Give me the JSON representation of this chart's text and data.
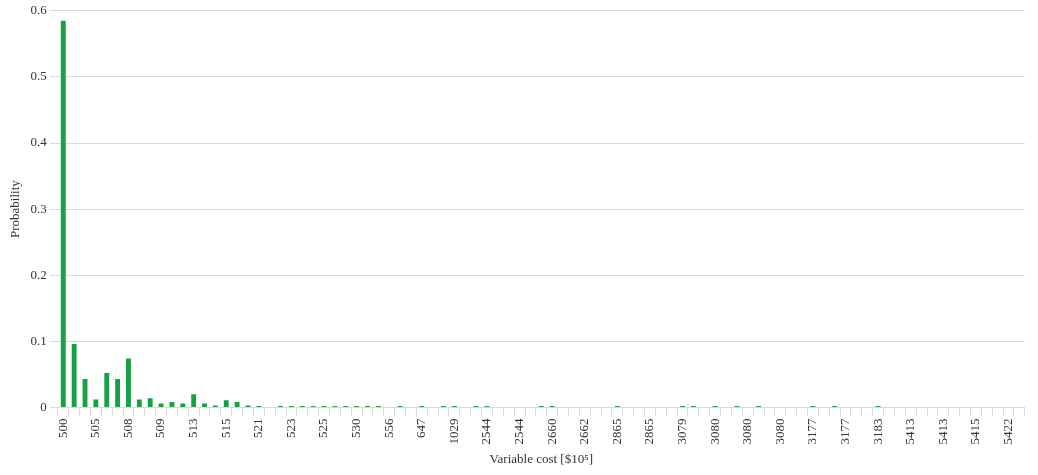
{
  "chart_data": {
    "type": "bar",
    "xlabel": "Variable cost [$10⁵]",
    "ylabel": "Probability",
    "categories": [
      "500",
      null,
      null,
      "505",
      null,
      null,
      "508",
      null,
      null,
      "509",
      null,
      null,
      "513",
      null,
      null,
      "515",
      null,
      null,
      "521",
      null,
      null,
      "523",
      null,
      null,
      "525",
      null,
      null,
      "530",
      null,
      null,
      "556",
      null,
      null,
      "647",
      null,
      null,
      "1029",
      null,
      null,
      "2544",
      null,
      null,
      "2544",
      null,
      null,
      "2660",
      null,
      null,
      "2662",
      null,
      null,
      "2865",
      null,
      null,
      "2865",
      null,
      null,
      "3079",
      null,
      null,
      "3080",
      null,
      null,
      "3080",
      null,
      null,
      "3080",
      null,
      null,
      "3177",
      null,
      null,
      "3177",
      null,
      null,
      "3183",
      null,
      null,
      "5413",
      null,
      null,
      "5413",
      null,
      null,
      "5415",
      null,
      null,
      "5422",
      null
    ],
    "values": [
      0.585,
      0.096,
      0.043,
      0.012,
      0.052,
      0.043,
      0.074,
      0.012,
      0.014,
      0.006,
      0.008,
      0.006,
      0.02,
      0.006,
      0.003,
      0.011,
      0.008,
      0.003,
      0.002,
      0,
      0.002,
      0.002,
      0.002,
      0.002,
      0.002,
      0.002,
      0.002,
      0.002,
      0.002,
      0.002,
      0,
      0.002,
      0,
      0.002,
      0,
      0.002,
      0.002,
      0,
      0.002,
      0.002,
      0,
      0,
      0,
      0,
      0.002,
      0.002,
      0,
      0,
      0,
      0,
      0,
      0.002,
      0,
      0,
      0,
      0,
      0,
      0.002,
      0.002,
      0,
      0.002,
      0,
      0.002,
      0,
      0.002,
      0,
      0,
      0,
      0,
      0.002,
      0,
      0.002,
      0,
      0,
      0,
      0.002,
      0,
      0,
      0,
      0,
      0,
      0,
      0,
      0,
      0,
      0,
      0,
      0,
      0
    ],
    "color": "#18a045",
    "ylim": [
      0,
      0.6
    ],
    "yticks": [
      0,
      0.1,
      0.2,
      0.3,
      0.4,
      0.5,
      0.6
    ],
    "grid": "y",
    "legend": false
  }
}
